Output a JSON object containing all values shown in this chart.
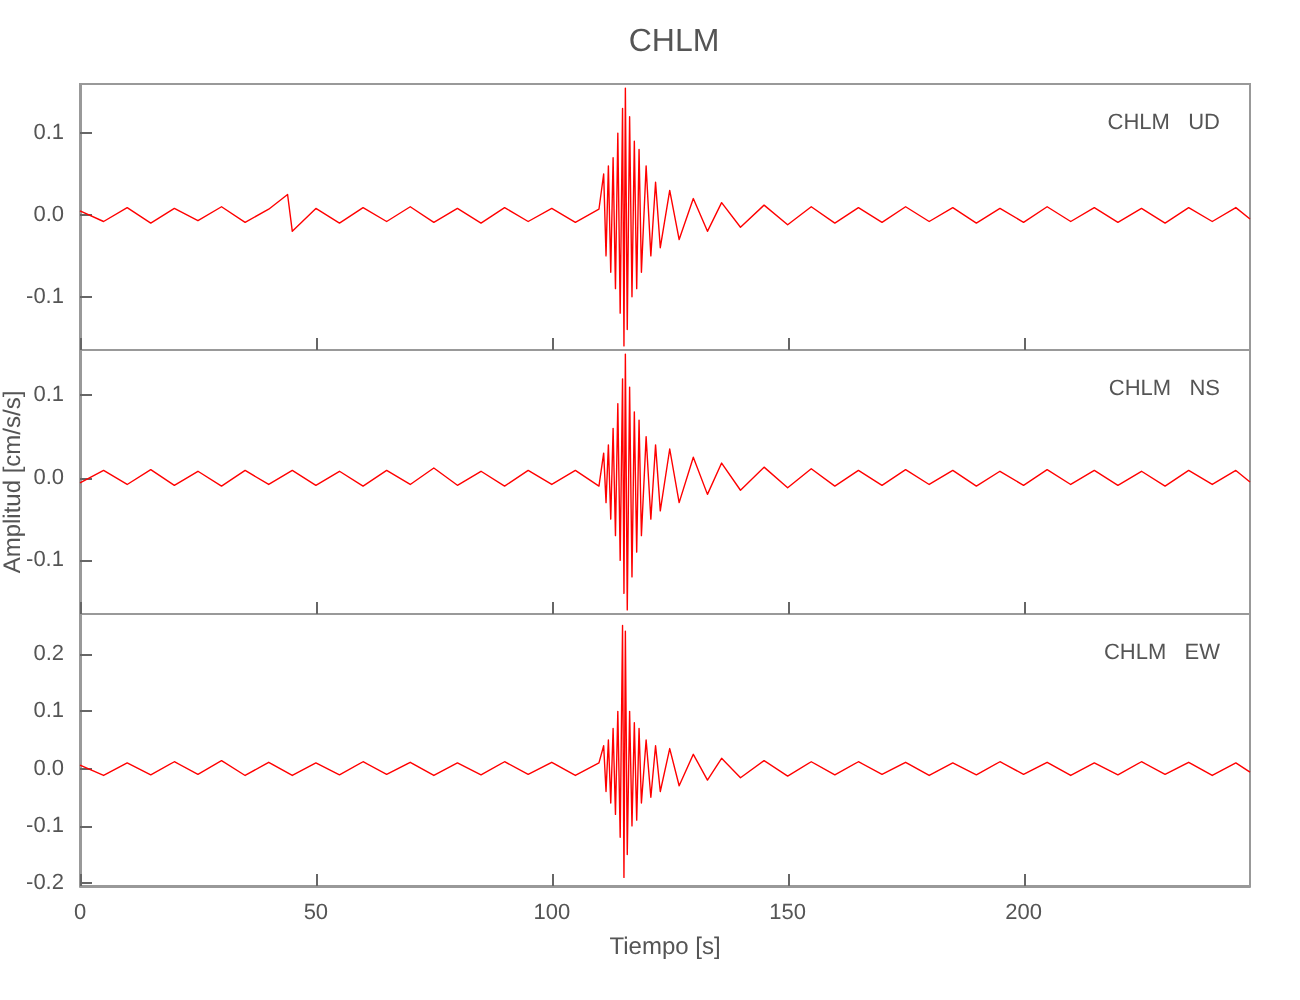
{
  "chart_data": [
    {
      "type": "line",
      "title": "CHLM",
      "annotations": [
        "CHLM   UD"
      ],
      "xlim": [
        0,
        248
      ],
      "xticks": [
        0,
        50,
        100,
        150,
        200
      ],
      "ylim": [
        -0.165,
        0.16
      ],
      "yticks": [
        {
          "value": 0.1,
          "label": "0.1"
        },
        {
          "value": 0,
          "label": "0.0"
        },
        {
          "value": -0.1,
          "label": "-0.1"
        }
      ],
      "tick_labels": "y",
      "grid": false,
      "marker": "none",
      "series": [
        {
          "color": "#ff0000",
          "x": [
            0,
            5,
            10,
            15,
            20,
            25,
            30,
            35,
            40,
            44,
            45,
            50,
            55,
            60,
            65,
            70,
            75,
            80,
            85,
            90,
            95,
            100,
            105,
            110,
            111,
            111.5,
            112,
            112.5,
            113,
            113.5,
            114,
            114.5,
            115,
            115.3,
            115.6,
            116,
            116.5,
            117,
            117.5,
            118,
            118.5,
            119,
            120,
            121,
            122,
            123,
            125,
            127,
            130,
            133,
            136,
            140,
            145,
            150,
            155,
            160,
            165,
            170,
            175,
            180,
            185,
            190,
            195,
            200,
            205,
            210,
            215,
            220,
            225,
            230,
            235,
            240,
            245,
            248
          ],
          "values": [
            0.005,
            -0.008,
            0.009,
            -0.01,
            0.008,
            -0.007,
            0.01,
            -0.009,
            0.007,
            0.025,
            -0.02,
            0.008,
            -0.01,
            0.009,
            -0.008,
            0.01,
            -0.009,
            0.008,
            -0.01,
            0.009,
            -0.008,
            0.008,
            -0.009,
            0.007,
            0.05,
            -0.05,
            0.06,
            -0.07,
            0.07,
            -0.09,
            0.1,
            -0.12,
            0.13,
            -0.16,
            0.155,
            -0.14,
            0.12,
            -0.1,
            0.09,
            -0.09,
            0.08,
            -0.07,
            0.06,
            -0.05,
            0.04,
            -0.04,
            0.03,
            -0.03,
            0.02,
            -0.02,
            0.015,
            -0.015,
            0.012,
            -0.012,
            0.01,
            -0.01,
            0.009,
            -0.009,
            0.01,
            -0.008,
            0.009,
            -0.01,
            0.008,
            -0.009,
            0.01,
            -0.008,
            0.009,
            -0.009,
            0.008,
            -0.01,
            0.009,
            -0.008,
            0.009,
            -0.005
          ]
        }
      ]
    },
    {
      "type": "line",
      "ylabel": "Amplitud [cm/s/s]",
      "annotations": [
        "CHLM   NS"
      ],
      "xlim": [
        0,
        248
      ],
      "xticks": [
        0,
        50,
        100,
        150,
        200
      ],
      "ylim": [
        -0.165,
        0.155
      ],
      "yticks": [
        {
          "value": 0.1,
          "label": "0.1"
        },
        {
          "value": 0,
          "label": "0.0"
        },
        {
          "value": -0.1,
          "label": "-0.1"
        }
      ],
      "tick_labels": "y",
      "grid": false,
      "marker": "none",
      "series": [
        {
          "color": "#ff0000",
          "x": [
            0,
            5,
            10,
            15,
            20,
            25,
            30,
            35,
            40,
            45,
            50,
            55,
            60,
            65,
            70,
            75,
            80,
            85,
            90,
            95,
            100,
            105,
            110,
            111,
            111.5,
            112,
            112.5,
            113,
            113.5,
            114,
            114.5,
            115,
            115.3,
            115.6,
            116,
            116.5,
            117,
            117.5,
            118,
            118.5,
            119,
            120,
            121,
            122,
            123,
            125,
            127,
            130,
            133,
            136,
            140,
            145,
            150,
            155,
            160,
            165,
            170,
            175,
            180,
            185,
            190,
            195,
            200,
            205,
            210,
            215,
            220,
            225,
            230,
            235,
            240,
            245,
            248
          ],
          "values": [
            -0.006,
            0.009,
            -0.008,
            0.01,
            -0.009,
            0.008,
            -0.01,
            0.009,
            -0.008,
            0.009,
            -0.009,
            0.008,
            -0.01,
            0.009,
            -0.008,
            0.012,
            -0.009,
            0.008,
            -0.01,
            0.009,
            -0.008,
            0.009,
            -0.01,
            0.03,
            -0.03,
            0.04,
            -0.05,
            0.06,
            -0.07,
            0.09,
            -0.1,
            0.12,
            -0.14,
            0.15,
            -0.16,
            0.11,
            -0.12,
            0.08,
            -0.09,
            0.07,
            -0.07,
            0.05,
            -0.05,
            0.04,
            -0.04,
            0.035,
            -0.03,
            0.025,
            -0.02,
            0.018,
            -0.015,
            0.013,
            -0.012,
            0.011,
            -0.01,
            0.009,
            -0.009,
            0.01,
            -0.008,
            0.009,
            -0.01,
            0.008,
            -0.009,
            0.01,
            -0.008,
            0.009,
            -0.009,
            0.008,
            -0.01,
            0.009,
            -0.008,
            0.009,
            -0.005
          ]
        }
      ]
    },
    {
      "type": "line",
      "xlabel": "Tiempo [s]",
      "annotations": [
        "CHLM   EW"
      ],
      "xlim": [
        0,
        248
      ],
      "xticks": [
        0,
        50,
        100,
        150,
        200
      ],
      "ylim": [
        -0.205,
        0.27
      ],
      "yticks": [
        {
          "value": 0.2,
          "label": "0.2"
        },
        {
          "value": 0.1,
          "label": "0.1"
        },
        {
          "value": 0,
          "label": "0.0"
        },
        {
          "value": -0.1,
          "label": "-0.1"
        },
        {
          "value": -0.2,
          "label": "-0.2"
        }
      ],
      "grid": false,
      "marker": "none",
      "series": [
        {
          "color": "#ff0000",
          "x": [
            0,
            5,
            10,
            15,
            20,
            25,
            30,
            35,
            40,
            45,
            50,
            55,
            60,
            65,
            70,
            75,
            80,
            85,
            90,
            95,
            100,
            105,
            110,
            111,
            111.5,
            112,
            112.5,
            113,
            113.5,
            114,
            114.5,
            115,
            115.3,
            115.6,
            116,
            116.5,
            117,
            117.5,
            118,
            118.5,
            119,
            120,
            121,
            122,
            123,
            125,
            127,
            130,
            133,
            136,
            140,
            145,
            150,
            155,
            160,
            165,
            170,
            175,
            180,
            185,
            190,
            195,
            200,
            205,
            210,
            215,
            220,
            225,
            230,
            235,
            240,
            245,
            248
          ],
          "values": [
            0.006,
            -0.012,
            0.01,
            -0.011,
            0.012,
            -0.01,
            0.014,
            -0.012,
            0.011,
            -0.012,
            0.01,
            -0.011,
            0.012,
            -0.01,
            0.011,
            -0.012,
            0.01,
            -0.011,
            0.012,
            -0.01,
            0.011,
            -0.012,
            0.01,
            0.04,
            -0.04,
            0.05,
            -0.06,
            0.07,
            -0.08,
            0.1,
            -0.12,
            0.25,
            -0.19,
            0.24,
            -0.15,
            0.1,
            -0.1,
            0.08,
            -0.09,
            0.07,
            -0.06,
            0.05,
            -0.05,
            0.04,
            -0.04,
            0.035,
            -0.03,
            0.025,
            -0.02,
            0.018,
            -0.016,
            0.014,
            -0.013,
            0.012,
            -0.011,
            0.012,
            -0.01,
            0.011,
            -0.012,
            0.01,
            -0.011,
            0.012,
            -0.01,
            0.011,
            -0.012,
            0.01,
            -0.011,
            0.012,
            -0.01,
            0.011,
            -0.012,
            0.01,
            -0.006
          ]
        }
      ]
    }
  ]
}
